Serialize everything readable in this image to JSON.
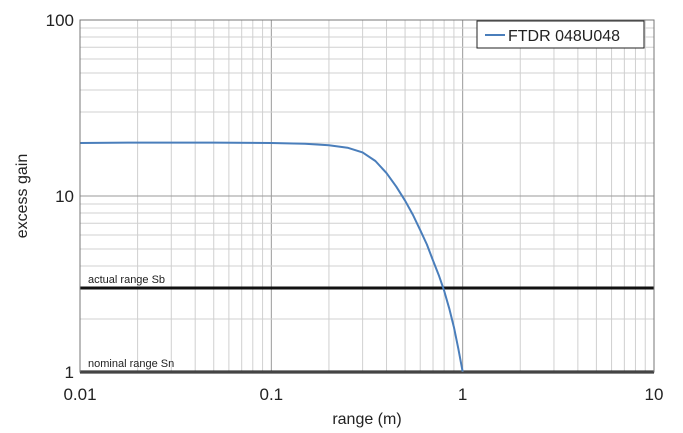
{
  "chart_data": {
    "type": "line",
    "title": "",
    "xlabel": "range (m)",
    "ylabel": "excess gain",
    "xscale": "log",
    "yscale": "log",
    "xlim": [
      0.01,
      10
    ],
    "ylim": [
      1,
      100
    ],
    "grid": true,
    "legend_position": "top-right",
    "x_tick_labels": [
      "0.01",
      "0.1",
      "1",
      "10"
    ],
    "y_tick_labels": [
      "1",
      "10",
      "100"
    ],
    "series": [
      {
        "name": "FTDR 048U048",
        "color": "#4a7ebb",
        "x": [
          0.01,
          0.02,
          0.05,
          0.1,
          0.15,
          0.2,
          0.25,
          0.3,
          0.35,
          0.4,
          0.45,
          0.5,
          0.55,
          0.6,
          0.65,
          0.7,
          0.75,
          0.8,
          0.85,
          0.9,
          0.95,
          1.0
        ],
        "y": [
          20,
          20.1,
          20.1,
          20,
          19.8,
          19.4,
          18.8,
          17.7,
          15.8,
          13.5,
          11.3,
          9.4,
          7.8,
          6.4,
          5.3,
          4.3,
          3.55,
          2.9,
          2.3,
          1.8,
          1.35,
          1.0
        ]
      }
    ],
    "reference_lines": [
      {
        "label": "actual range Sb",
        "y": 3
      },
      {
        "label": "nominal range Sn",
        "y": 1
      }
    ]
  }
}
